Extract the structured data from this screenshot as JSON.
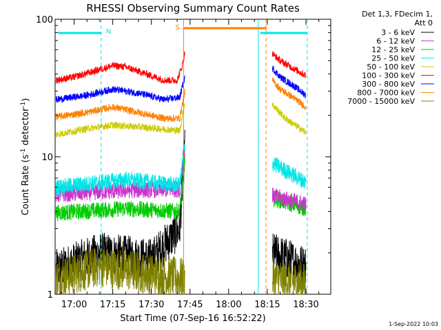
{
  "chart_data": {
    "type": "line",
    "title": "RHESSI Observing Summary Count Rates",
    "xlabel": "Start Time (07-Sep-16 16:52:22)",
    "ylabel_main": "Count Rate (s",
    "ylabel_exp": "-1",
    "ylabel_tail": " detector",
    "ylabel_close": ")",
    "yscale": "log",
    "ylim": [
      1,
      100
    ],
    "xlim_minutes": [
      -7.37,
      99.63
    ],
    "x_ticks": [
      {
        "label": "17:00",
        "minute": 0
      },
      {
        "label": "17:15",
        "minute": 15
      },
      {
        "label": "17:30",
        "minute": 30
      },
      {
        "label": "17:45",
        "minute": 45
      },
      {
        "label": "18:00",
        "minute": 60
      },
      {
        "label": "18:15",
        "minute": 75
      },
      {
        "label": "18:30",
        "minute": 90
      }
    ],
    "y_ticks": [
      {
        "label": "1",
        "value": 1
      },
      {
        "label": "10",
        "value": 10
      },
      {
        "label": "100",
        "value": 100
      }
    ],
    "legend_header": [
      "Det 1,3, FDecim 1,",
      "Att 0"
    ],
    "legend_position": "right",
    "series": [
      {
        "name": "3 - 6 keV",
        "color": "#000000",
        "segments": [
          [
            [
              -7,
              1.5
            ],
            [
              10,
              2.0
            ],
            [
              30,
              1.8
            ],
            [
              41,
              3.0
            ],
            [
              43,
              12
            ]
          ],
          [
            [
              77,
              2.0
            ],
            [
              90,
              1.6
            ]
          ]
        ]
      },
      {
        "name": "6 - 12 keV",
        "color": "#cc33cc",
        "segments": [
          [
            [
              -7,
              5.3
            ],
            [
              20,
              5.7
            ],
            [
              41,
              5.8
            ],
            [
              43,
              12
            ]
          ],
          [
            [
              77,
              5.2
            ],
            [
              90,
              4.5
            ]
          ]
        ]
      },
      {
        "name": "12 - 25 keV",
        "color": "#00cc00",
        "segments": [
          [
            [
              -7,
              3.9
            ],
            [
              20,
              4.2
            ],
            [
              41,
              4.0
            ],
            [
              43,
              10
            ]
          ],
          [
            [
              77,
              5.0
            ],
            [
              90,
              4.2
            ]
          ]
        ]
      },
      {
        "name": "25 - 50 keV",
        "color": "#00e5e5",
        "segments": [
          [
            [
              -7,
              6.0
            ],
            [
              20,
              6.8
            ],
            [
              41,
              6.2
            ],
            [
              43,
              12
            ]
          ],
          [
            [
              77,
              9.0
            ],
            [
              90,
              6.5
            ]
          ]
        ]
      },
      {
        "name": "50 - 100 keV",
        "color": "#cccc00",
        "segments": [
          [
            [
              -7,
              14.5
            ],
            [
              5,
              16.0
            ],
            [
              15,
              17.0
            ],
            [
              25,
              16.5
            ],
            [
              41,
              15.5
            ],
            [
              43,
              25
            ]
          ],
          [
            [
              77,
              24.0
            ],
            [
              82,
              19.0
            ],
            [
              90,
              15.0
            ]
          ]
        ]
      },
      {
        "name": "100 - 300 keV",
        "color": "#ff0000",
        "segments": [
          [
            [
              -7,
              36
            ],
            [
              0,
              38
            ],
            [
              8,
              42
            ],
            [
              15,
              46
            ],
            [
              20,
              45
            ],
            [
              28,
              40
            ],
            [
              35,
              36
            ],
            [
              40,
              36
            ],
            [
              42,
              46
            ],
            [
              43,
              58
            ]
          ],
          [
            [
              77,
              56
            ],
            [
              80,
              50
            ],
            [
              85,
              44
            ],
            [
              90,
              39
            ]
          ]
        ]
      },
      {
        "name": "300 - 800 keV",
        "color": "#0000ff",
        "segments": [
          [
            [
              -7,
              26
            ],
            [
              5,
              28
            ],
            [
              15,
              31
            ],
            [
              25,
              29
            ],
            [
              35,
              26
            ],
            [
              41,
              27
            ],
            [
              43,
              38
            ]
          ],
          [
            [
              77,
              44
            ],
            [
              80,
              38
            ],
            [
              85,
              33
            ],
            [
              90,
              28
            ]
          ]
        ]
      },
      {
        "name": "800 - 7000 keV",
        "color": "#ff8000",
        "segments": [
          [
            [
              -7,
              19.5
            ],
            [
              5,
              21
            ],
            [
              15,
              23
            ],
            [
              25,
              21
            ],
            [
              35,
              19
            ],
            [
              41,
              19
            ],
            [
              43,
              30
            ]
          ],
          [
            [
              77,
              36
            ],
            [
              80,
              31
            ],
            [
              85,
              27
            ],
            [
              90,
              23
            ]
          ]
        ]
      },
      {
        "name": "7000 - 15000 keV",
        "color": "#808000",
        "segments": [
          [
            [
              -7,
              1.3
            ],
            [
              10,
              1.6
            ],
            [
              30,
              1.4
            ],
            [
              43,
              1.3
            ]
          ],
          [
            [
              77,
              1.3
            ],
            [
              90,
              1.2
            ]
          ]
        ]
      }
    ],
    "annotations": [
      {
        "label": "N",
        "color": "#00e5e5"
      },
      {
        "label": "S",
        "color": "#ff8000"
      }
    ],
    "night_bars": [
      [
        -7,
        10.5
      ],
      [
        71.5,
        90.5
      ]
    ],
    "saa_bar": [
      42.5,
      74.5
    ],
    "vlines": [
      {
        "minute": 10.5,
        "color": "#00e5e5",
        "style": "dashed"
      },
      {
        "minute": 42.5,
        "color": "#ff8000",
        "style": "solid"
      },
      {
        "minute": 71.5,
        "color": "#00e5e5",
        "style": "solid"
      },
      {
        "minute": 74.5,
        "color": "#ff8000",
        "style": "dashed"
      },
      {
        "minute": 90.5,
        "color": "#00e5e5",
        "style": "dashed"
      }
    ]
  },
  "footer_date": "1-Sep-2022 10:03"
}
